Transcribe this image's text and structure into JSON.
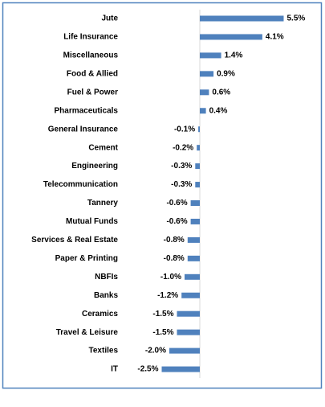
{
  "chart_data": {
    "type": "bar",
    "orientation": "horizontal",
    "color": "#4f81bd",
    "categories": [
      "Jute",
      "Life Insurance",
      "Miscellaneous",
      "Food & Allied",
      "Fuel & Power",
      "Pharmaceuticals",
      "General Insurance",
      "Cement",
      "Engineering",
      "Telecommunication",
      "Tannery",
      "Mutual Funds",
      "Services & Real Estate",
      "Paper & Printing",
      "NBFIs",
      "Banks",
      "Ceramics",
      "Travel & Leisure",
      "Textiles",
      "IT"
    ],
    "values": [
      5.5,
      4.1,
      1.4,
      0.9,
      0.6,
      0.4,
      -0.1,
      -0.2,
      -0.3,
      -0.3,
      -0.6,
      -0.6,
      -0.8,
      -0.8,
      -1.0,
      -1.2,
      -1.5,
      -1.5,
      -2.0,
      -2.5
    ],
    "value_labels": [
      "5.5%",
      "4.1%",
      "1.4%",
      "0.9%",
      "0.6%",
      "0.4%",
      "-0.1%",
      "-0.2%",
      "-0.3%",
      "-0.3%",
      "-0.6%",
      "-0.6%",
      "-0.8%",
      "-0.8%",
      "-1.0%",
      "-1.2%",
      "-1.5%",
      "-1.5%",
      "-2.0%",
      "-2.5%"
    ]
  }
}
